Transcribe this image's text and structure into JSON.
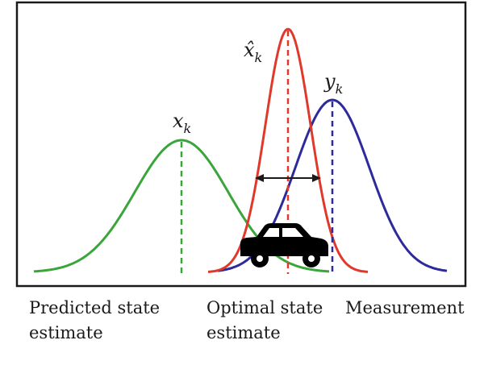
{
  "labels": {
    "predicted_symbol": "x",
    "predicted_subscript": "k",
    "optimal_symbol": "x̂",
    "optimal_subscript": "k",
    "measurement_symbol": "y",
    "measurement_subscript": "k"
  },
  "captions": {
    "predicted": "Predicted state\nestimate",
    "optimal": "Optimal state\nestimate",
    "measurement": "Measurement"
  },
  "colors": {
    "predicted": "#3aa53a",
    "optimal": "#e0392b",
    "measurement": "#2e2a9c",
    "frame": "#1a1a1a",
    "car": "#000000"
  },
  "icons": {
    "vehicle": "car-icon",
    "spread": "double-arrow-icon"
  }
}
